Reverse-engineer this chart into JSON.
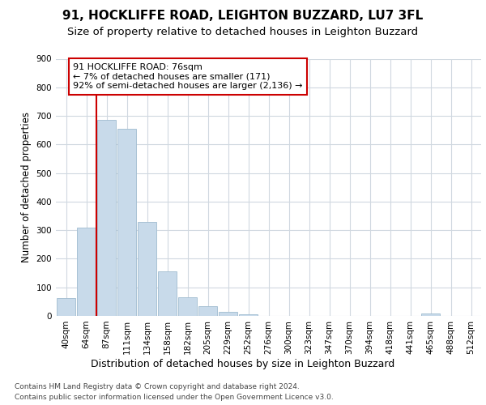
{
  "title1": "91, HOCKLIFFE ROAD, LEIGHTON BUZZARD, LU7 3FL",
  "title2": "Size of property relative to detached houses in Leighton Buzzard",
  "xlabel": "Distribution of detached houses by size in Leighton Buzzard",
  "ylabel": "Number of detached properties",
  "footnote1": "Contains HM Land Registry data © Crown copyright and database right 2024.",
  "footnote2": "Contains public sector information licensed under the Open Government Licence v3.0.",
  "bar_labels": [
    "40sqm",
    "64sqm",
    "87sqm",
    "111sqm",
    "134sqm",
    "158sqm",
    "182sqm",
    "205sqm",
    "229sqm",
    "252sqm",
    "276sqm",
    "300sqm",
    "323sqm",
    "347sqm",
    "370sqm",
    "394sqm",
    "418sqm",
    "441sqm",
    "465sqm",
    "488sqm",
    "512sqm"
  ],
  "bar_values": [
    62,
    310,
    685,
    655,
    330,
    155,
    65,
    35,
    15,
    5,
    0,
    0,
    0,
    0,
    0,
    0,
    0,
    0,
    8,
    0,
    0
  ],
  "bar_color": "#c8daea",
  "bar_edge_color": "#a0bcd0",
  "vline_x": 1.5,
  "vline_color": "#cc0000",
  "annotation_text": "91 HOCKLIFFE ROAD: 76sqm\n← 7% of detached houses are smaller (171)\n92% of semi-detached houses are larger (2,136) →",
  "annotation_box_color": "#ffffff",
  "annotation_box_edge_color": "#cc0000",
  "ylim": [
    0,
    900
  ],
  "yticks": [
    0,
    100,
    200,
    300,
    400,
    500,
    600,
    700,
    800,
    900
  ],
  "bg_color": "#ffffff",
  "plot_bg_color": "#ffffff",
  "grid_color": "#d0d8e0",
  "title1_fontsize": 11,
  "title2_fontsize": 9.5,
  "xlabel_fontsize": 9,
  "ylabel_fontsize": 8.5,
  "tick_fontsize": 7.5,
  "annot_fontsize": 8,
  "footnote_fontsize": 6.5
}
